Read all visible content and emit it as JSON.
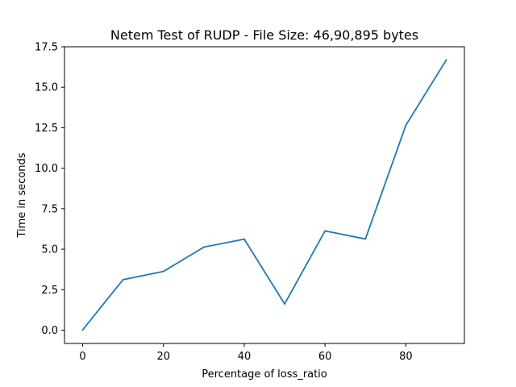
{
  "chart_data": {
    "type": "line",
    "title": "Netem Test of RUDP - File Size: 46,90,895 bytes",
    "xlabel": "Percentage of loss_ratio",
    "ylabel": "Time in seconds",
    "x": [
      0,
      10,
      20,
      30,
      40,
      50,
      60,
      70,
      80,
      90
    ],
    "series": [
      {
        "values": [
          0.02,
          3.12,
          3.63,
          5.13,
          5.62,
          1.62,
          6.13,
          5.63,
          12.65,
          16.68
        ],
        "color": "#1f77b4"
      }
    ],
    "xlim": [
      -4.5,
      94.5
    ],
    "ylim": [
      -0.82,
      17.5
    ],
    "x_ticks": [
      0,
      20,
      40,
      60,
      80
    ],
    "x_tick_labels": [
      "0",
      "20",
      "40",
      "60",
      "80"
    ],
    "y_ticks": [
      0,
      2.5,
      5,
      7.5,
      10,
      12.5,
      15,
      17.5
    ],
    "y_tick_labels": [
      "0.0",
      "2.5",
      "5.0",
      "7.5",
      "10.0",
      "12.5",
      "15.0",
      "17.5"
    ],
    "grid": false,
    "legend": "none"
  }
}
